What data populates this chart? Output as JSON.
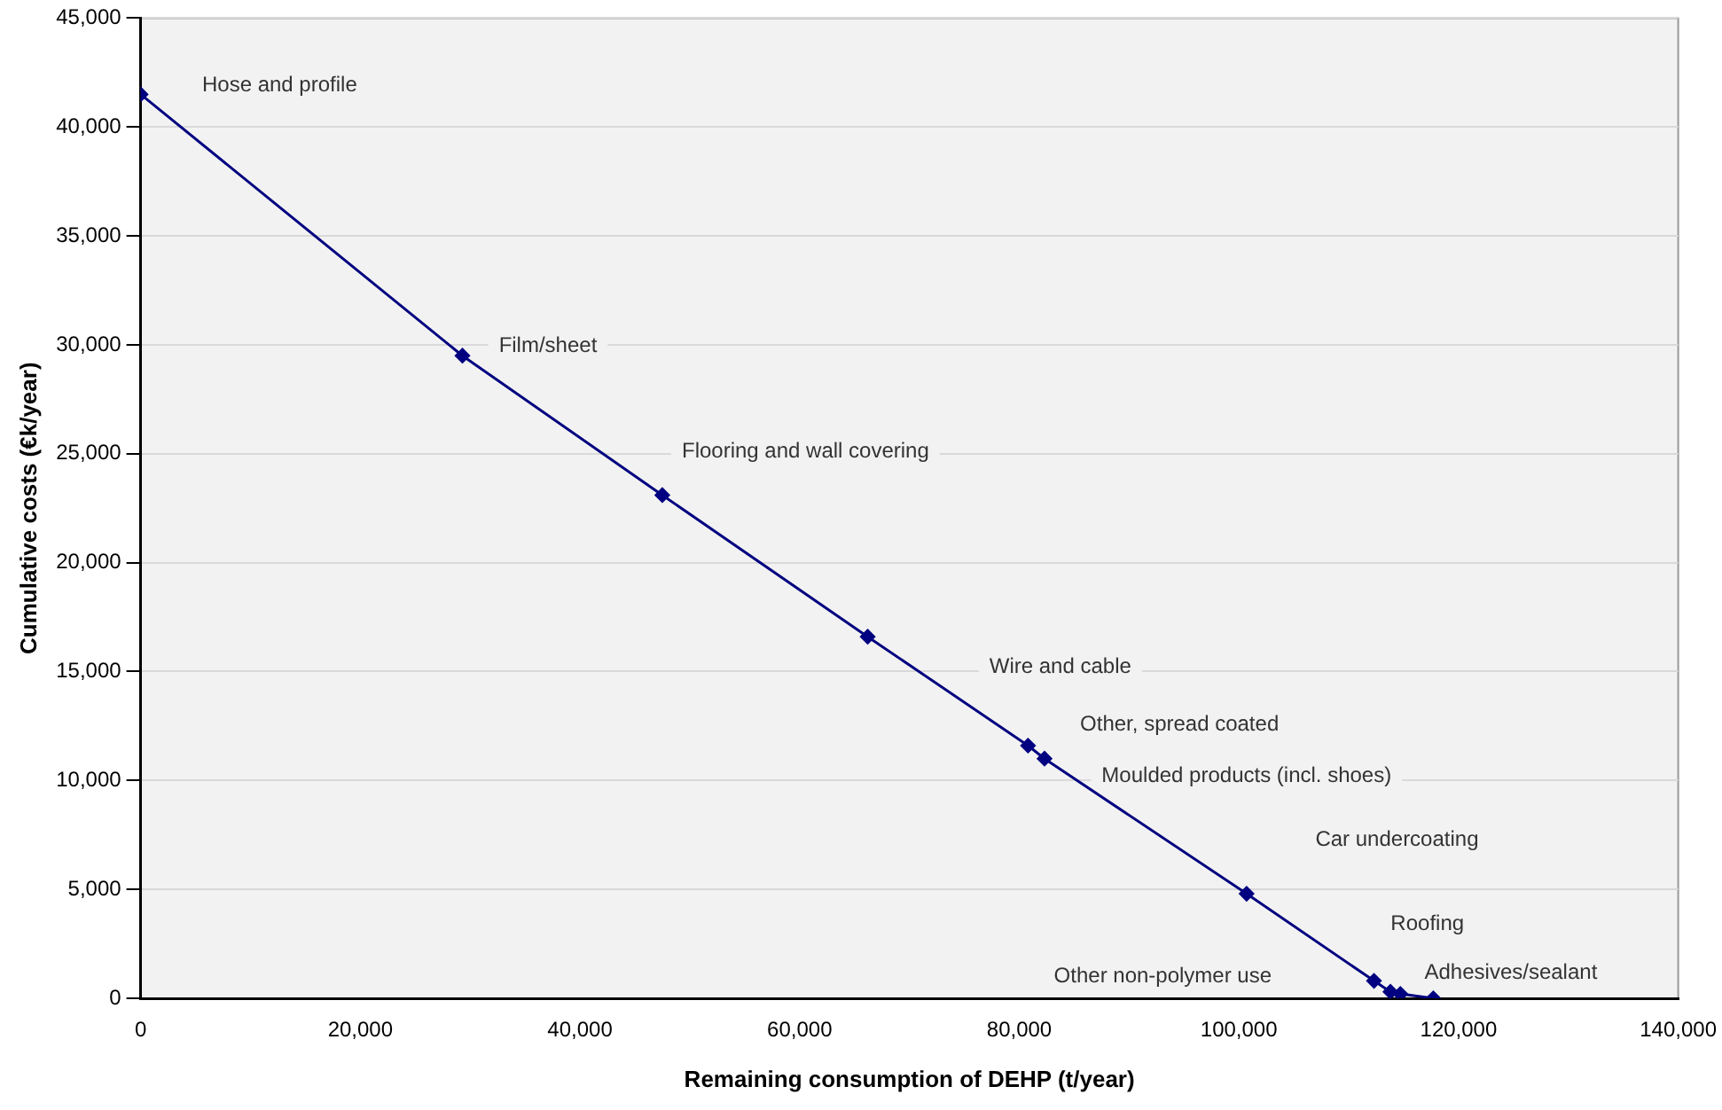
{
  "chart_data": {
    "type": "line",
    "xlabel": "Remaining consumption of DEHP (t/year)",
    "ylabel": "Cumulative costs (€k/year)",
    "x": [
      0,
      29300,
      47500,
      66200,
      80800,
      82300,
      100700,
      112300,
      113800,
      114700,
      117700
    ],
    "series": [
      {
        "color": "#000080",
        "values": [
          41500,
          29500,
          23100,
          16600,
          11600,
          11000,
          4800,
          800,
          300,
          200,
          0
        ]
      }
    ],
    "xlim": [
      0,
      140000
    ],
    "xticks": [
      {
        "value": 0,
        "label": "0"
      },
      {
        "value": 20000,
        "label": "20,000"
      },
      {
        "value": 40000,
        "label": "40,000"
      },
      {
        "value": 60000,
        "label": "60,000"
      },
      {
        "value": 80000,
        "label": "80,000"
      },
      {
        "value": 100000,
        "label": "100,000"
      },
      {
        "value": 120000,
        "label": "120,000"
      },
      {
        "value": 140000,
        "label": "140,000"
      }
    ],
    "ylim": [
      0,
      45000
    ],
    "yticks": [
      {
        "value": 0,
        "label": "0"
      },
      {
        "value": 5000,
        "label": "5,000"
      },
      {
        "value": 10000,
        "label": "10,000"
      },
      {
        "value": 15000,
        "label": "15,000"
      },
      {
        "value": 20000,
        "label": "20,000"
      },
      {
        "value": 25000,
        "label": "25,000"
      },
      {
        "value": 30000,
        "label": "30,000"
      },
      {
        "value": 35000,
        "label": "35,000"
      },
      {
        "value": 40000,
        "label": "40,000"
      },
      {
        "value": 45000,
        "label": "45,000"
      }
    ],
    "grid": "y",
    "legend": false,
    "marker": "diamond",
    "line_style": "solid",
    "annotations": [
      "Hose and profile",
      "Film/sheet",
      "Flooring and wall covering",
      "Wire and cable",
      "Other, spread coated",
      "Moulded products (incl. shoes)",
      "Car undercoating",
      "Roofing",
      "Adhesives/sealant",
      "Other non-polymer use"
    ]
  }
}
